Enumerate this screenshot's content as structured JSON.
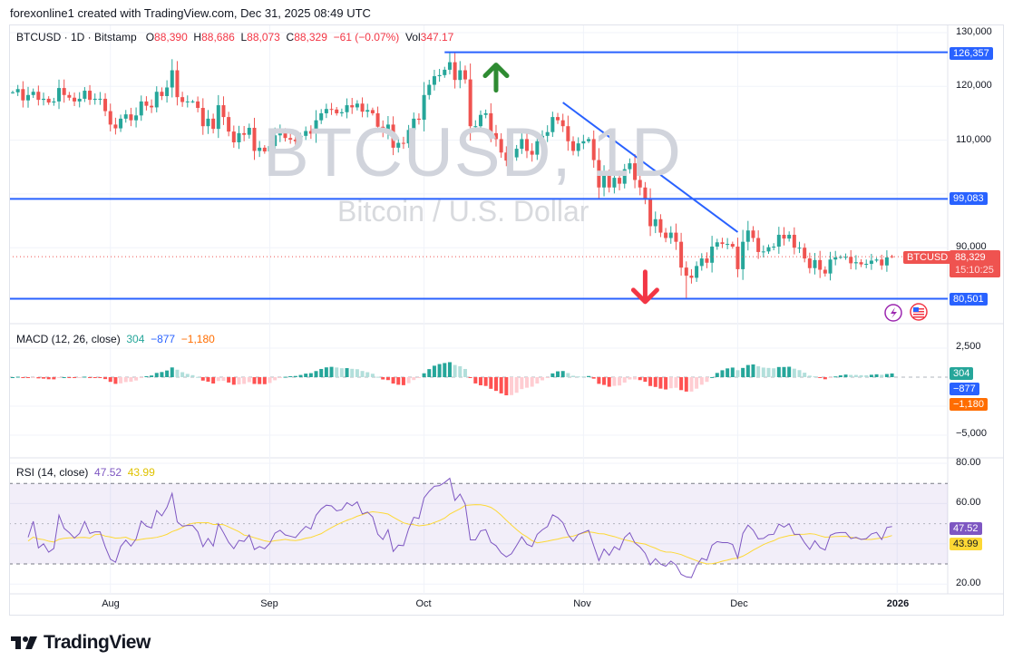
{
  "header": {
    "attribution": "forexonline1 created with TradingView.com, Dec 31, 2025 08:49 UTC"
  },
  "legend": {
    "symbol": "BTCUSD · 1D · Bitstamp",
    "o_label": "O",
    "o": "88,390",
    "h_label": "H",
    "h": "88,686",
    "l_label": "L",
    "l": "88,073",
    "c_label": "C",
    "c": "88,329",
    "change": "−61 (−0.07%)",
    "vol_label": "Vol",
    "vol": "347.17"
  },
  "watermark": {
    "title": "BTCUSD, 1D",
    "subtitle": "Bitcoin / U.S. Dollar"
  },
  "price_axis": {
    "ticks": [
      {
        "label": "130,000",
        "value": 130000
      },
      {
        "label": "120,000",
        "value": 120000
      },
      {
        "label": "110,000",
        "value": 110000
      },
      {
        "label": "90,000",
        "value": 90000
      }
    ]
  },
  "levels": [
    {
      "label": "126,357",
      "value": 126357,
      "from": "2025-10-05"
    },
    {
      "label": "99,083",
      "value": 99083
    },
    {
      "label": "80,501",
      "value": 80501
    }
  ],
  "last_price": {
    "symbol": "BTCUSD",
    "price": "88,329",
    "countdown": "15:10:25"
  },
  "annotations": {
    "trendline": [
      {
        "date": "2025-10-28",
        "price": 117000
      },
      {
        "date": "2025-12-01",
        "price": 92900
      }
    ],
    "up_arrow": {
      "date": "2025-10-15",
      "price": 124000
    },
    "down_arrow": {
      "date": "2025-11-13",
      "price": 85500
    },
    "icons": [
      "lightning-icon",
      "us-flag-icon"
    ]
  },
  "macd": {
    "title": "MACD (12, 26, close)",
    "hist": "304",
    "macd": "−877",
    "signal": "−1,180",
    "ticks": [
      {
        "label": "2,500",
        "value": 2500
      },
      {
        "label": "−5,000",
        "value": -5000
      }
    ]
  },
  "rsi": {
    "title": "RSI (14, close)",
    "value": "47.52",
    "ma": "43.99",
    "ticks": [
      {
        "label": "80.00",
        "value": 80
      },
      {
        "label": "60.00",
        "value": 60
      },
      {
        "label": "20.00",
        "value": 20
      }
    ],
    "bands": [
      70,
      30
    ]
  },
  "time_axis": [
    {
      "label": "Aug",
      "date": "2025-08-01"
    },
    {
      "label": "Sep",
      "date": "2025-09-01"
    },
    {
      "label": "Oct",
      "date": "2025-10-01"
    },
    {
      "label": "Nov",
      "date": "2025-11-01"
    },
    {
      "label": "Dec",
      "date": "2025-12-01"
    },
    {
      "label": "2026",
      "date": "2026-01-01"
    }
  ],
  "footer": {
    "brand": "TradingView"
  },
  "colors": {
    "up": "#26a69a",
    "down": "#ef5350",
    "level": "#2962ff",
    "macd": "#2962ff",
    "signal": "#ff6d00",
    "rsi": "#7e57c2",
    "rsi_ma": "#fdd835",
    "up_arrow": "#2e8b32",
    "down_arrow": "#f23645"
  },
  "chart_data": {
    "type": "candlestick",
    "x_range": [
      "2025-07-13",
      "2025-12-31"
    ],
    "ylim": [
      78000,
      131500
    ],
    "closes": [
      118900,
      119500,
      117400,
      118400,
      119000,
      117500,
      117700,
      117000,
      117200,
      119700,
      118400,
      117900,
      117200,
      117700,
      119200,
      117500,
      117700,
      117700,
      115400,
      112900,
      112200,
      114000,
      114800,
      113700,
      114600,
      117200,
      116400,
      116100,
      119000,
      118200,
      119800,
      123000,
      118000,
      117100,
      117200,
      117200,
      116000,
      112600,
      114000,
      112100,
      116500,
      114300,
      111600,
      109600,
      111300,
      111000,
      112300,
      108000,
      108600,
      107900,
      108900,
      110900,
      111500,
      110400,
      110100,
      109800,
      110800,
      111700,
      111200,
      113700,
      115000,
      115800,
      115700,
      115000,
      115200,
      116500,
      116100,
      116800,
      115300,
      115600,
      115000,
      112500,
      111600,
      112900,
      108600,
      109500,
      109400,
      111900,
      114000,
      113800,
      118400,
      120300,
      121900,
      122100,
      123100,
      124500,
      121200,
      123000,
      121300,
      112600,
      112600,
      114700,
      115000,
      111300,
      110200,
      107700,
      106200,
      106800,
      108400,
      110200,
      108000,
      107300,
      109800,
      110800,
      111500,
      114300,
      113700,
      112600,
      109800,
      108000,
      109400,
      109800,
      110200,
      106300,
      101200,
      103500,
      101200,
      103000,
      101900,
      104600,
      105700,
      102600,
      101200,
      99000,
      94000,
      95300,
      92800,
      91800,
      92800,
      91100,
      86300,
      84800,
      84400,
      86600,
      88000,
      87200,
      90200,
      91000,
      90700,
      90700,
      90200,
      86000,
      91100,
      93200,
      91800,
      89200,
      89300,
      90100,
      90200,
      92400,
      91700,
      92400,
      90000,
      90000,
      88000,
      86200,
      87700,
      85900,
      85200,
      87800,
      88200,
      88300,
      88300,
      87100,
      87300,
      86900,
      87000,
      87600,
      87800,
      86700,
      88200,
      88329
    ],
    "last_bar": {
      "o": 88390,
      "h": 88686,
      "l": 88073,
      "c": 88329
    },
    "extremes": {
      "high": {
        "date": "2025-10-06",
        "value": 126357
      },
      "low": {
        "date": "2025-11-21",
        "value": 80501
      }
    }
  }
}
